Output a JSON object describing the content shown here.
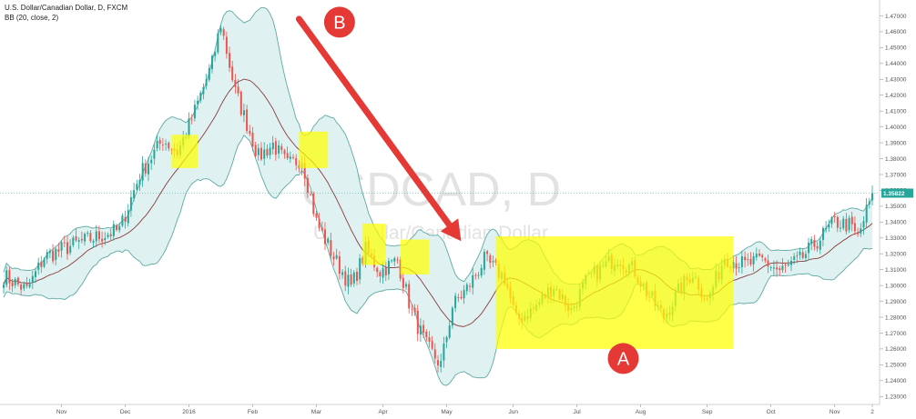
{
  "header": {
    "symbol": "U.S. Dollar/Canadian Dollar, D, FXCM",
    "indicator": "BB (20, close, 2)"
  },
  "watermark": {
    "ticker": "USDCAD, D",
    "name": "U.S. Dollar/Canadian Dollar"
  },
  "annotations": {
    "label_a": "A",
    "label_b": "B"
  },
  "colors": {
    "up": "#26a69a",
    "down": "#ef5350",
    "band_fill": "#dff2f1",
    "band_line": "#5fa9a4",
    "basis": "#8b3a3a",
    "highlight": "#ffff00",
    "arrow": "#e53935",
    "badge": "#e53935",
    "last_price_bg": "#26a69a"
  },
  "chart_data": {
    "type": "candlestick",
    "title": "U.S. Dollar/Canadian Dollar, D, FXCM",
    "indicator": "Bollinger Bands (20, close, 2)",
    "ylim": [
      1.225,
      1.48
    ],
    "y_ticks": [
      "1.23000",
      "1.24000",
      "1.25000",
      "1.26000",
      "1.27000",
      "1.28000",
      "1.29000",
      "1.30000",
      "1.31000",
      "1.32000",
      "1.33000",
      "1.34000",
      "1.35000",
      "1.36000",
      "1.37000",
      "1.38000",
      "1.39000",
      "1.40000",
      "1.41000",
      "1.42000",
      "1.43000",
      "1.44000",
      "1.45000",
      "1.46000",
      "1.47000",
      "1.48000"
    ],
    "x_labels": [
      {
        "label": "Nov",
        "bar": 20
      },
      {
        "label": "Dec",
        "bar": 42
      },
      {
        "label": "2016",
        "bar": 64
      },
      {
        "label": "Feb",
        "bar": 86
      },
      {
        "label": "Mar",
        "bar": 108
      },
      {
        "label": "Apr",
        "bar": 131
      },
      {
        "label": "May",
        "bar": 153
      },
      {
        "label": "Jun",
        "bar": 176
      },
      {
        "label": "Jul",
        "bar": 198
      },
      {
        "label": "Aug",
        "bar": 220
      },
      {
        "label": "Sep",
        "bar": 243
      },
      {
        "label": "Oct",
        "bar": 265
      },
      {
        "label": "Nov",
        "bar": 287
      },
      {
        "label": "2",
        "bar": 300
      }
    ],
    "last_price": "1.35822",
    "last_price_value": 1.35822,
    "anchors": [
      {
        "bar": 0,
        "close": 1.306
      },
      {
        "bar": 8,
        "close": 1.297
      },
      {
        "bar": 14,
        "close": 1.318
      },
      {
        "bar": 26,
        "close": 1.327
      },
      {
        "bar": 40,
        "close": 1.335
      },
      {
        "bar": 47,
        "close": 1.37
      },
      {
        "bar": 55,
        "close": 1.392
      },
      {
        "bar": 60,
        "close": 1.384
      },
      {
        "bar": 65,
        "close": 1.405
      },
      {
        "bar": 72,
        "close": 1.44
      },
      {
        "bar": 75,
        "close": 1.465
      },
      {
        "bar": 80,
        "close": 1.422
      },
      {
        "bar": 84,
        "close": 1.402
      },
      {
        "bar": 88,
        "close": 1.381
      },
      {
        "bar": 93,
        "close": 1.389
      },
      {
        "bar": 98,
        "close": 1.376
      },
      {
        "bar": 103,
        "close": 1.38
      },
      {
        "bar": 108,
        "close": 1.34
      },
      {
        "bar": 114,
        "close": 1.318
      },
      {
        "bar": 120,
        "close": 1.299
      },
      {
        "bar": 125,
        "close": 1.322
      },
      {
        "bar": 130,
        "close": 1.309
      },
      {
        "bar": 136,
        "close": 1.316
      },
      {
        "bar": 141,
        "close": 1.283
      },
      {
        "bar": 146,
        "close": 1.262
      },
      {
        "bar": 151,
        "close": 1.25
      },
      {
        "bar": 155,
        "close": 1.287
      },
      {
        "bar": 160,
        "close": 1.298
      },
      {
        "bar": 166,
        "close": 1.316
      },
      {
        "bar": 173,
        "close": 1.305
      },
      {
        "bar": 177,
        "close": 1.278
      },
      {
        "bar": 183,
        "close": 1.285
      },
      {
        "bar": 190,
        "close": 1.3
      },
      {
        "bar": 196,
        "close": 1.284
      },
      {
        "bar": 201,
        "close": 1.302
      },
      {
        "bar": 206,
        "close": 1.31
      },
      {
        "bar": 212,
        "close": 1.318
      },
      {
        "bar": 218,
        "close": 1.309
      },
      {
        "bar": 222,
        "close": 1.296
      },
      {
        "bar": 228,
        "close": 1.28
      },
      {
        "bar": 234,
        "close": 1.299
      },
      {
        "bar": 238,
        "close": 1.308
      },
      {
        "bar": 243,
        "close": 1.29
      },
      {
        "bar": 249,
        "close": 1.318
      },
      {
        "bar": 256,
        "close": 1.313
      },
      {
        "bar": 262,
        "close": 1.316
      },
      {
        "bar": 268,
        "close": 1.309
      },
      {
        "bar": 275,
        "close": 1.316
      },
      {
        "bar": 282,
        "close": 1.33
      },
      {
        "bar": 287,
        "close": 1.34
      },
      {
        "bar": 292,
        "close": 1.338
      },
      {
        "bar": 295,
        "close": 1.33
      },
      {
        "bar": 300,
        "close": 1.358
      }
    ],
    "highlight_zones": [
      {
        "name": "zone-dec",
        "bar_start": 58,
        "bar_end": 67,
        "price_low": 1.374,
        "price_high": 1.395
      },
      {
        "name": "zone-feb",
        "bar_start": 102,
        "bar_end": 112,
        "price_low": 1.374,
        "price_high": 1.397
      },
      {
        "name": "zone-mar",
        "bar_start": 124,
        "bar_end": 132,
        "price_low": 1.313,
        "price_high": 1.339
      },
      {
        "name": "zone-apr",
        "bar_start": 137,
        "bar_end": 147,
        "price_low": 1.307,
        "price_high": 1.329
      },
      {
        "name": "zone-range-a",
        "bar_start": 170,
        "bar_end": 252,
        "price_low": 1.26,
        "price_high": 1.331
      }
    ],
    "arrow": {
      "bar_start": 102,
      "price_start": 1.468,
      "bar_end": 158,
      "price_end": 1.328
    },
    "label_positions": [
      {
        "name": "label-b",
        "bar": 116,
        "price": 1.466
      },
      {
        "name": "label-a",
        "bar": 214,
        "price": 1.254
      }
    ]
  }
}
